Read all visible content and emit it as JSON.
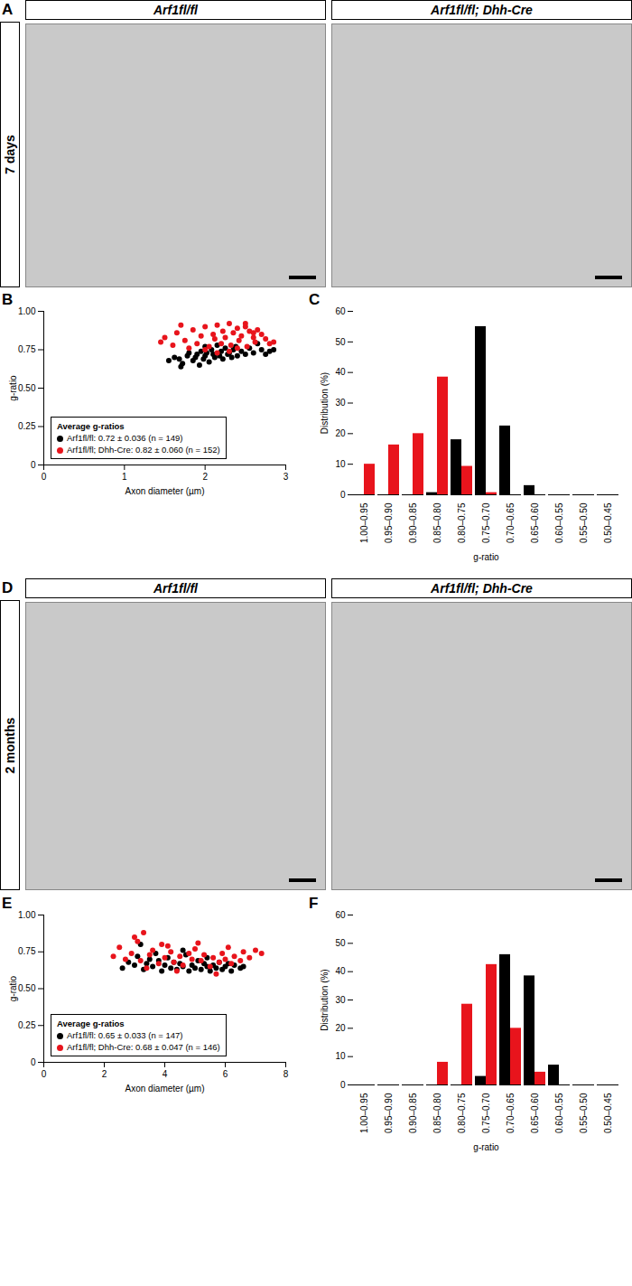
{
  "panels": [
    {
      "panel": "A",
      "type": "image",
      "row_label": "7 days",
      "columns": [
        "Arf1fl/fl",
        "Arf1fl/fl; Dhh-Cre"
      ]
    },
    {
      "panel": "D",
      "type": "image",
      "row_label": "2 months",
      "columns": [
        "Arf1fl/fl",
        "Arf1fl/fl; Dhh-Cre"
      ]
    }
  ],
  "chart_data": [
    {
      "panel": "B",
      "type": "scatter",
      "xlabel": "Axon diameter (µm)",
      "ylabel": "g-ratio",
      "xlim": [
        0,
        3
      ],
      "xticks": [
        0,
        1,
        2,
        3
      ],
      "ylim": [
        0,
        1
      ],
      "yticks": [
        0,
        0.25,
        {
          "value": 0.5,
          "label": "0.50"
        },
        0.75,
        {
          "value": 1,
          "label": "1.00"
        }
      ],
      "grid": false,
      "legend": "bottom-left",
      "legend_title": "Average g-ratios",
      "series": [
        {
          "name": "Arf1fl/fl",
          "label": "Arf1fl/fl: 0.72 ± 0.036 (n = 149)",
          "color": "#000000",
          "x": [
            1.55,
            1.62,
            1.68,
            1.72,
            1.78,
            1.8,
            1.85,
            1.88,
            1.9,
            1.93,
            1.95,
            1.98,
            2.0,
            2.02,
            2.05,
            2.08,
            2.1,
            2.12,
            2.15,
            2.18,
            2.2,
            2.22,
            2.25,
            2.28,
            2.3,
            2.33,
            2.35,
            2.38,
            2.4,
            2.45,
            2.5,
            2.55,
            2.6,
            2.65,
            2.7,
            2.75,
            2.8,
            2.85,
            1.7,
            2.0
          ],
          "values": [
            0.68,
            0.7,
            0.69,
            0.66,
            0.71,
            0.73,
            0.68,
            0.7,
            0.72,
            0.65,
            0.74,
            0.69,
            0.71,
            0.73,
            0.67,
            0.75,
            0.72,
            0.7,
            0.78,
            0.71,
            0.74,
            0.69,
            0.76,
            0.72,
            0.73,
            0.7,
            0.75,
            0.77,
            0.71,
            0.74,
            0.72,
            0.76,
            0.73,
            0.79,
            0.75,
            0.72,
            0.74,
            0.75,
            0.64,
            0.77
          ]
        },
        {
          "name": "Arf1fl/fl; Dhh-Cre",
          "label": "Arf1fl/fl; Dhh-Cre: 0.82 ± 0.060 (n = 152)",
          "color": "#e8141c",
          "x": [
            1.45,
            1.5,
            1.6,
            1.65,
            1.75,
            1.8,
            1.85,
            1.9,
            1.95,
            2.0,
            2.05,
            2.1,
            2.12,
            2.15,
            2.2,
            2.22,
            2.25,
            2.3,
            2.32,
            2.35,
            2.4,
            2.42,
            2.45,
            2.5,
            2.52,
            2.55,
            2.6,
            2.62,
            2.65,
            2.7,
            2.75,
            2.8,
            2.85,
            2.0,
            2.3,
            2.5,
            2.15,
            2.4,
            2.6,
            1.7
          ],
          "values": [
            0.8,
            0.83,
            0.78,
            0.86,
            0.81,
            0.76,
            0.88,
            0.79,
            0.84,
            0.9,
            0.77,
            0.85,
            0.82,
            0.91,
            0.79,
            0.87,
            0.83,
            0.92,
            0.78,
            0.86,
            0.89,
            0.81,
            0.84,
            0.9,
            0.77,
            0.87,
            0.83,
            0.8,
            0.88,
            0.85,
            0.82,
            0.79,
            0.8,
            0.75,
            0.74,
            0.92,
            0.73,
            0.76,
            0.86,
            0.91
          ]
        }
      ]
    },
    {
      "panel": "C",
      "type": "bar",
      "xlabel": "g-ratio",
      "ylabel": "Distribution (%)",
      "categories": [
        "1.00–0.95",
        "0.95–0.90",
        "0.90–0.85",
        "0.85–0.80",
        "0.80–0.75",
        "0.75–0.70",
        "0.70–0.65",
        "0.65–0.60",
        "0.60–0.55",
        "0.55–0.50",
        "0.50–0.45"
      ],
      "ylim": [
        0,
        60
      ],
      "yticks": [
        0,
        10,
        20,
        30,
        40,
        50,
        60
      ],
      "grid": false,
      "series": [
        {
          "name": "Arf1fl/fl",
          "color": "#000000",
          "values": [
            0,
            0,
            0,
            0.7,
            18,
            55,
            22.5,
            3,
            0,
            0,
            0
          ]
        },
        {
          "name": "Arf1fl/fl; Dhh-Cre",
          "color": "#e8141c",
          "values": [
            10,
            16.3,
            20,
            38.5,
            9.3,
            0.7,
            0,
            0,
            0,
            0,
            0
          ]
        }
      ]
    },
    {
      "panel": "E",
      "type": "scatter",
      "xlabel": "Axon diameter (µm)",
      "ylabel": "g-ratio",
      "xlim": [
        0,
        8
      ],
      "xticks": [
        0,
        2,
        4,
        6,
        8
      ],
      "ylim": [
        0,
        1
      ],
      "yticks": [
        0,
        0.25,
        {
          "value": 0.5,
          "label": "0.50"
        },
        0.75,
        {
          "value": 1,
          "label": "1.00"
        }
      ],
      "grid": false,
      "legend": "bottom-left",
      "legend_title": "Average g-ratios",
      "series": [
        {
          "name": "Arf1fl/fl",
          "label": "Arf1fl/fl: 0.65 ± 0.033 (n = 147)",
          "color": "#000000",
          "x": [
            2.6,
            2.8,
            3.0,
            3.1,
            3.3,
            3.4,
            3.5,
            3.6,
            3.8,
            3.9,
            4.0,
            4.1,
            4.2,
            4.3,
            4.4,
            4.5,
            4.6,
            4.7,
            4.8,
            4.9,
            5.0,
            5.1,
            5.2,
            5.3,
            5.4,
            5.5,
            5.6,
            5.7,
            5.8,
            5.9,
            6.0,
            6.1,
            6.2,
            6.3,
            6.5,
            6.6,
            3.2,
            4.6,
            5.4,
            3.7
          ],
          "values": [
            0.64,
            0.68,
            0.66,
            0.72,
            0.63,
            0.67,
            0.7,
            0.65,
            0.69,
            0.62,
            0.66,
            0.71,
            0.64,
            0.68,
            0.63,
            0.67,
            0.65,
            0.73,
            0.62,
            0.66,
            0.64,
            0.69,
            0.63,
            0.67,
            0.65,
            0.62,
            0.66,
            0.64,
            0.68,
            0.63,
            0.65,
            0.67,
            0.62,
            0.66,
            0.64,
            0.65,
            0.8,
            0.76,
            0.71,
            0.74
          ]
        },
        {
          "name": "Arf1fl/fl; Dhh-Cre",
          "label": "Arf1fl/fl; Dhh-Cre: 0.68 ± 0.047 (n = 146)",
          "color": "#e8141c",
          "x": [
            2.3,
            2.5,
            2.7,
            2.9,
            3.0,
            3.2,
            3.3,
            3.5,
            3.6,
            3.8,
            3.9,
            4.0,
            4.2,
            4.3,
            4.5,
            4.6,
            4.8,
            4.9,
            5.0,
            5.2,
            5.3,
            5.5,
            5.6,
            5.8,
            5.9,
            6.0,
            6.2,
            6.3,
            6.5,
            6.6,
            6.8,
            7.0,
            7.2,
            3.1,
            3.4,
            4.1,
            4.4,
            5.1,
            5.7,
            6.1
          ],
          "values": [
            0.72,
            0.78,
            0.7,
            0.74,
            0.85,
            0.69,
            0.88,
            0.73,
            0.76,
            0.67,
            0.8,
            0.71,
            0.75,
            0.68,
            0.72,
            0.66,
            0.74,
            0.7,
            0.77,
            0.69,
            0.73,
            0.65,
            0.71,
            0.68,
            0.74,
            0.7,
            0.67,
            0.72,
            0.69,
            0.75,
            0.71,
            0.76,
            0.74,
            0.82,
            0.64,
            0.79,
            0.62,
            0.81,
            0.6,
            0.78
          ]
        }
      ]
    },
    {
      "panel": "F",
      "type": "bar",
      "xlabel": "g-ratio",
      "ylabel": "Distribution (%)",
      "categories": [
        "1.00–0.95",
        "0.95–0.90",
        "0.90–0.85",
        "0.85–0.80",
        "0.80–0.75",
        "0.75–0.70",
        "0.70–0.65",
        "0.65–0.60",
        "0.60–0.55",
        "0.55–0.50",
        "0.50–0.45"
      ],
      "ylim": [
        0,
        60
      ],
      "yticks": [
        0,
        10,
        20,
        30,
        40,
        50,
        60
      ],
      "grid": false,
      "series": [
        {
          "name": "Arf1fl/fl",
          "color": "#000000",
          "values": [
            0,
            0,
            0,
            0,
            0,
            3,
            46,
            38.5,
            7,
            0,
            0
          ]
        },
        {
          "name": "Arf1fl/fl; Dhh-Cre",
          "color": "#e8141c",
          "values": [
            0,
            0,
            0,
            8,
            28.5,
            42.5,
            20,
            4.5,
            0,
            0,
            0
          ]
        }
      ]
    }
  ]
}
